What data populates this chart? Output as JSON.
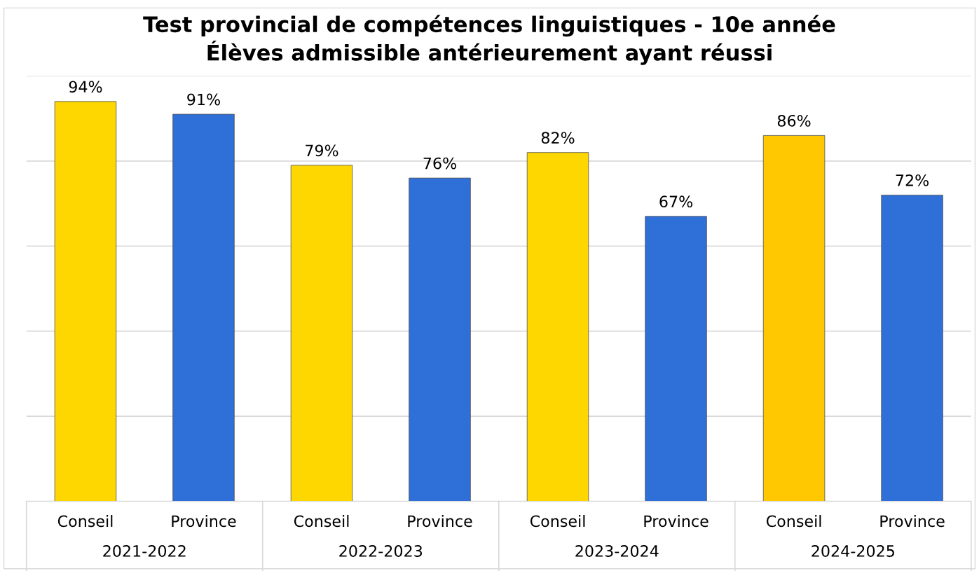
{
  "chart_data": {
    "type": "bar",
    "title": "Test provincial de compétences linguistiques - 10e année\nÉlèves admissible antérieurement ayant réussi",
    "categories": [
      "Conseil",
      "Province",
      "Conseil",
      "Province",
      "Conseil",
      "Province",
      "Conseil",
      "Province"
    ],
    "values": [
      94,
      91,
      79,
      76,
      82,
      67,
      86,
      72
    ],
    "value_labels": [
      "94%",
      "91%",
      "79%",
      "76%",
      "82%",
      "67%",
      "86%",
      "72%"
    ],
    "colors": [
      "#ffd700",
      "#2f6fd8",
      "#ffd700",
      "#2f6fd8",
      "#ffd700",
      "#2f6fd8",
      "#ffc800",
      "#2f6fd8"
    ],
    "annotations": [
      "2021-2022",
      "2022-2023",
      "2023-2024",
      "2024-2025"
    ],
    "ylim": [
      0,
      100
    ],
    "yticks": [
      0,
      20,
      40,
      60,
      80,
      100
    ],
    "tick_labels": "x",
    "grid": "y",
    "legend": false
  }
}
